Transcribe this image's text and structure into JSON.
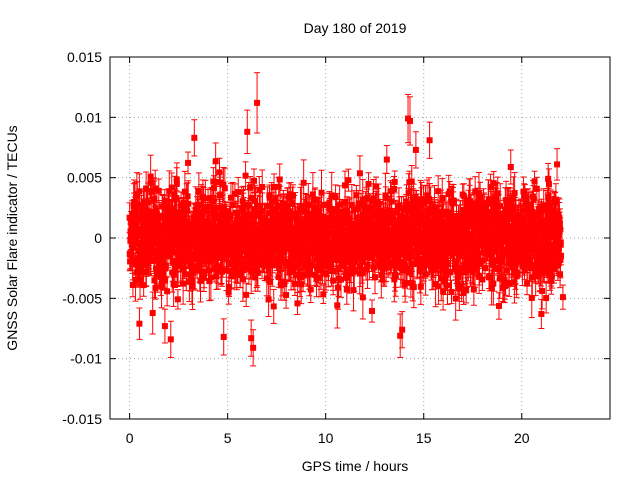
{
  "chart_data": {
    "type": "scatter",
    "title": "Day 180 of 2019",
    "xlabel": "GPS time / hours",
    "ylabel": "GNSS Solar Flare indicator / TECUs",
    "xlim": [
      -1,
      24.5
    ],
    "ylim": [
      -0.015,
      0.015
    ],
    "xticks": [
      0,
      5,
      10,
      15,
      20
    ],
    "xtick_labels": [
      "0",
      "5",
      "10",
      "15",
      "20"
    ],
    "yticks": [
      0.015,
      0.01,
      0.005,
      0,
      -0.005,
      -0.01,
      -0.015
    ],
    "ytick_labels": [
      "0.015",
      "0.01",
      "0.005",
      "0",
      "-0.005",
      "-0.01",
      "-0.015"
    ],
    "grid": true,
    "series": [
      {
        "name": "solar flare indicator",
        "color": "#ff0000",
        "marker": "square",
        "error_bars": true,
        "x_range": [
          0,
          22
        ],
        "typical_spread": 0.0025,
        "typical_error": 0.0012,
        "notable_points": [
          {
            "x": 6.5,
            "y": 0.0112,
            "err": 0.0025
          },
          {
            "x": 14.2,
            "y": 0.0099,
            "err": 0.002
          },
          {
            "x": 14.3,
            "y": 0.0097,
            "err": 0.002
          },
          {
            "x": 15.3,
            "y": 0.0081,
            "err": 0.0015
          },
          {
            "x": 3.3,
            "y": 0.0083,
            "err": 0.0015
          },
          {
            "x": 6.0,
            "y": 0.0088,
            "err": 0.0018
          },
          {
            "x": 14.6,
            "y": 0.0073,
            "err": 0.0015
          },
          {
            "x": 21.8,
            "y": 0.0061,
            "err": 0.0013
          },
          {
            "x": 6.3,
            "y": -0.0091,
            "err": 0.0015
          },
          {
            "x": 6.2,
            "y": -0.0083,
            "err": 0.0015
          },
          {
            "x": 13.8,
            "y": -0.0081,
            "err": 0.0018
          },
          {
            "x": 13.9,
            "y": -0.0076,
            "err": 0.0015
          },
          {
            "x": 2.1,
            "y": -0.0084,
            "err": 0.0015
          },
          {
            "x": 4.8,
            "y": -0.0082,
            "err": 0.0015
          },
          {
            "x": 1.8,
            "y": -0.0073,
            "err": 0.0014
          },
          {
            "x": 0.5,
            "y": -0.0071,
            "err": 0.0013
          },
          {
            "x": 21.0,
            "y": -0.0063,
            "err": 0.0012
          },
          {
            "x": 22.1,
            "y": -0.0049,
            "err": 0.001
          }
        ]
      }
    ]
  }
}
